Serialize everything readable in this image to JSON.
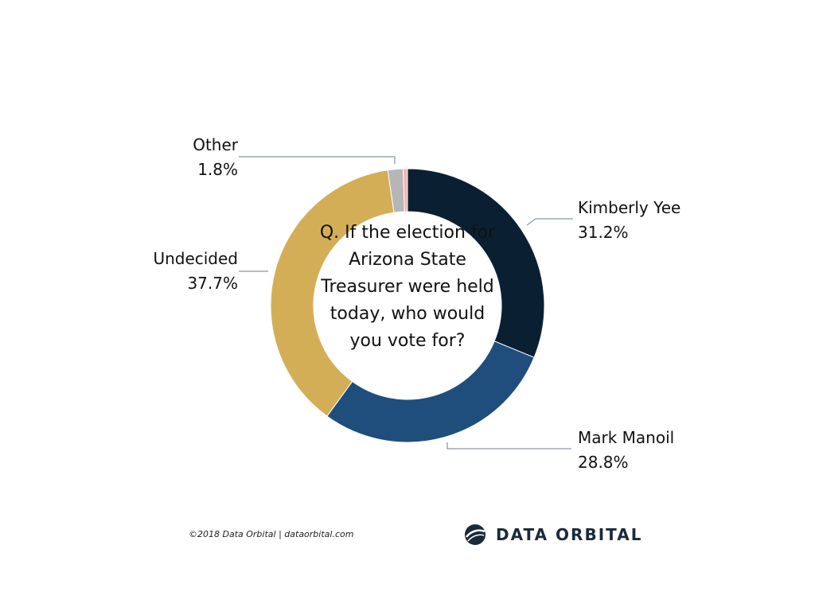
{
  "chart_data": {
    "type": "pie",
    "style": "donut",
    "center_text": "Q. If the election for Arizona State Treasurer were held today, who would you vote for?",
    "slices": [
      {
        "label": "Kimberly Yee",
        "value": 31.2,
        "value_label": "31.2%",
        "color": "#0b1f33"
      },
      {
        "label": "Mark Manoil",
        "value": 28.8,
        "value_label": "28.8%",
        "color": "#1f4e7d"
      },
      {
        "label": "Undecided",
        "value": 37.7,
        "value_label": "37.7%",
        "color": "#d4ae57"
      },
      {
        "label": "Other",
        "value": 1.8,
        "value_label": "1.8%",
        "color": "#b6b6b6"
      },
      {
        "label": "",
        "value": 0.5,
        "value_label": "",
        "color": "#f2b3b3"
      }
    ]
  },
  "footer": {
    "copyright": "©2018 Data Orbital | dataorbital.com",
    "logo_text": "DATA ORBITAL"
  },
  "leader_color": "#6b7d8c"
}
